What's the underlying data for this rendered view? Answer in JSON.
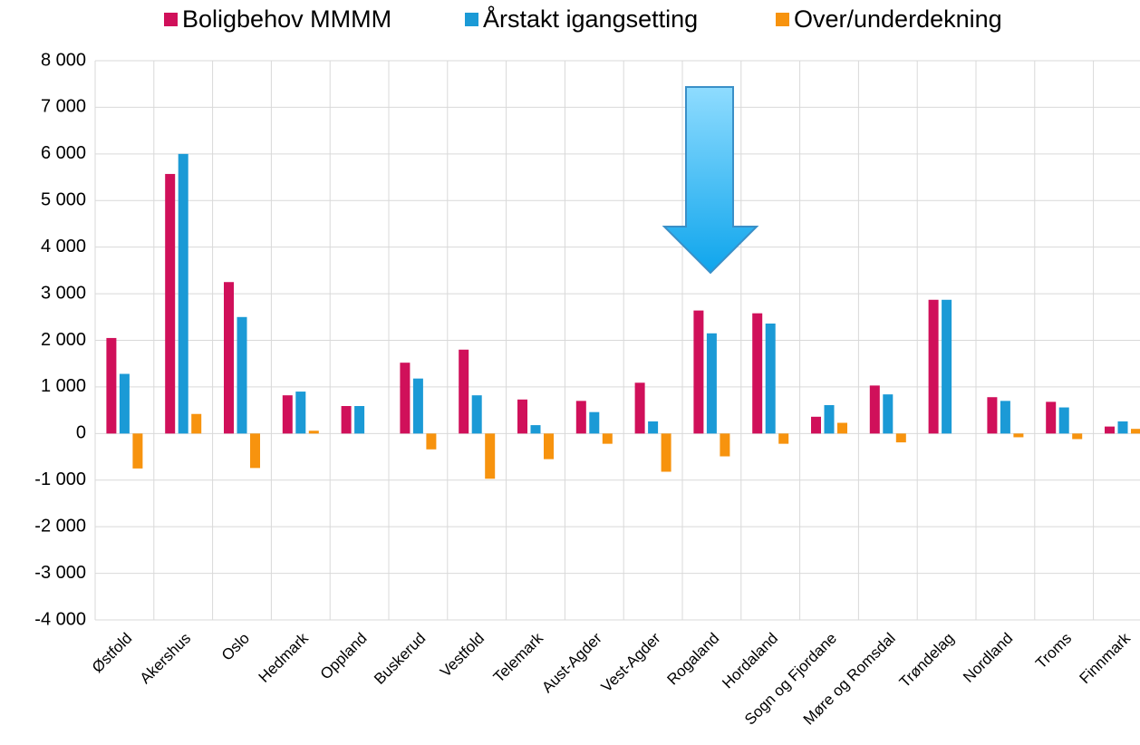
{
  "chart_data": {
    "type": "bar",
    "categories": [
      "Østfold",
      "Akershus",
      "Oslo",
      "Hedmark",
      "Oppland",
      "Buskerud",
      "Vestfold",
      "Telemark",
      "Aust-Agder",
      "Vest-Agder",
      "Rogaland",
      "Hordaland",
      "Sogn og Fjordane",
      "Møre og Romsdal",
      "Trøndelag",
      "Nordland",
      "Troms",
      "Finnmark"
    ],
    "series": [
      {
        "name": "Boligbehov MMMM",
        "color": "#d0105a",
        "values": [
          2050,
          5570,
          3250,
          820,
          590,
          1520,
          1800,
          730,
          700,
          1090,
          2640,
          2580,
          360,
          1030,
          2870,
          780,
          680,
          150
        ]
      },
      {
        "name": "Årstakt igangsetting",
        "color": "#1b9ad6",
        "values": [
          1280,
          6000,
          2500,
          900,
          590,
          1180,
          820,
          180,
          460,
          260,
          2150,
          2360,
          610,
          840,
          2870,
          700,
          560,
          260
        ]
      },
      {
        "name": "Over/underdekning",
        "color": "#f7930e",
        "values": [
          -750,
          420,
          -740,
          60,
          0,
          -340,
          -970,
          -550,
          -220,
          -820,
          -490,
          -220,
          230,
          -190,
          0,
          -80,
          -120,
          100
        ]
      }
    ],
    "ylim": [
      -4000,
      8000
    ],
    "yticks": [
      {
        "value": -4000,
        "label": "-4 000"
      },
      {
        "value": -3000,
        "label": "-3 000"
      },
      {
        "value": -2000,
        "label": "-2 000"
      },
      {
        "value": -1000,
        "label": "-1 000"
      },
      0,
      {
        "value": 1000,
        "label": "1 000"
      },
      {
        "value": 2000,
        "label": "2 000"
      },
      {
        "value": 3000,
        "label": "3 000"
      },
      {
        "value": 4000,
        "label": "4 000"
      },
      {
        "value": 5000,
        "label": "5 000"
      },
      {
        "value": 6000,
        "label": "6 000"
      },
      {
        "value": 7000,
        "label": "7 000"
      },
      {
        "value": 8000,
        "label": "8 000"
      }
    ],
    "grid": true,
    "legend": "top"
  }
}
